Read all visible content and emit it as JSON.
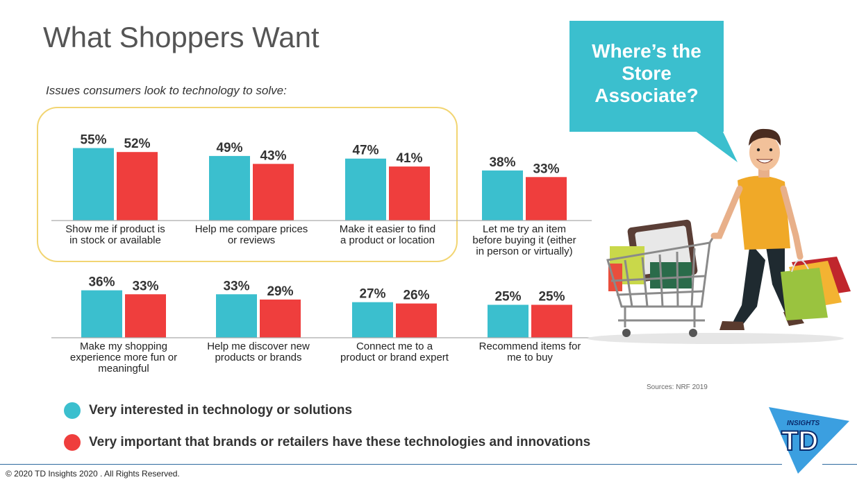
{
  "title": "What Shoppers Want",
  "subtitle": "Issues consumers look to technology to solve:",
  "bubble_text": "Where’s the Store Associate?",
  "source": "Sources: NRF 2019",
  "legend": [
    {
      "label": "Very interested in technology or solutions",
      "color": "#3bbfce"
    },
    {
      "label": "Very important that brands or retailers have these technologies and innovations",
      "color": "#ef3e3d"
    }
  ],
  "footer": "© 2020 TD Insights 2020 . All Rights Reserved.",
  "logo": {
    "small_text": "INSIGHTS",
    "letters": "TD"
  },
  "chart_data": {
    "type": "bar",
    "categories": [
      "Show me if product is in stock or available",
      "Help me compare prices or reviews",
      "Make it easier to find a product or location",
      "Let me try an item before buying it (either in person or virtually)",
      "Make my shopping experience more fun or meaningful",
      "Help me discover new products or brands",
      "Connect me to a product or brand expert",
      "Recommend items for me to buy"
    ],
    "category_lines": [
      [
        "Show me if product is",
        "in stock or available"
      ],
      [
        "Help me compare prices",
        "or reviews"
      ],
      [
        "Make it easier to find",
        "a product or location"
      ],
      [
        "Let me try an item",
        "before buying it (either",
        "in person or virtually)"
      ],
      [
        "Make my shopping",
        "experience more fun or",
        "meaningful"
      ],
      [
        "Help me discover new",
        "products or brands"
      ],
      [
        "Connect me to a",
        "product or brand expert"
      ],
      [
        "Recommend items for",
        "me to buy"
      ]
    ],
    "series": [
      {
        "name": "Very interested in technology or solutions",
        "color": "#3bbfce",
        "values": [
          55,
          49,
          47,
          38,
          36,
          33,
          27,
          25
        ]
      },
      {
        "name": "Very important that brands or retailers have these technologies and innovations",
        "color": "#ef3e3d",
        "values": [
          52,
          43,
          41,
          33,
          33,
          29,
          26,
          25
        ]
      }
    ],
    "value_suffix": "%",
    "title": "",
    "xlabel": "",
    "ylabel": ""
  }
}
